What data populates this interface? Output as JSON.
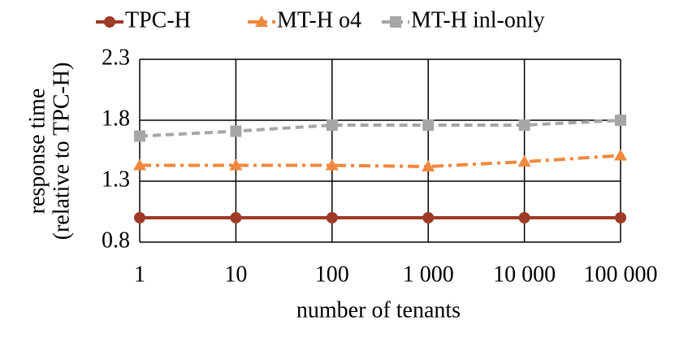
{
  "chart_data": {
    "type": "line",
    "xlabel": "number of tenants",
    "ylabel": [
      "response time",
      "(relative to TPC-H)"
    ],
    "categories": [
      "1",
      "10",
      "100",
      "1 000",
      "10 000",
      "100 000"
    ],
    "series": [
      {
        "name": "TPC-H",
        "color": "#9e3a26",
        "marker": "circle",
        "dash": "solid",
        "values": [
          1.0,
          1.0,
          1.0,
          1.0,
          1.0,
          1.0
        ]
      },
      {
        "name": "MT-H o4",
        "color": "#f0883e",
        "marker": "triangle",
        "dash": "dashdot",
        "values": [
          1.43,
          1.43,
          1.43,
          1.42,
          1.46,
          1.51
        ]
      },
      {
        "name": "MT-H inl-only",
        "color": "#a6a6a6",
        "marker": "square",
        "dash": "dashed",
        "values": [
          1.67,
          1.71,
          1.76,
          1.76,
          1.76,
          1.8
        ]
      }
    ],
    "ylim": [
      0.8,
      2.3
    ],
    "yticks": [
      0.8,
      1.3,
      1.8,
      2.3
    ],
    "grid": true,
    "legend": "top"
  }
}
